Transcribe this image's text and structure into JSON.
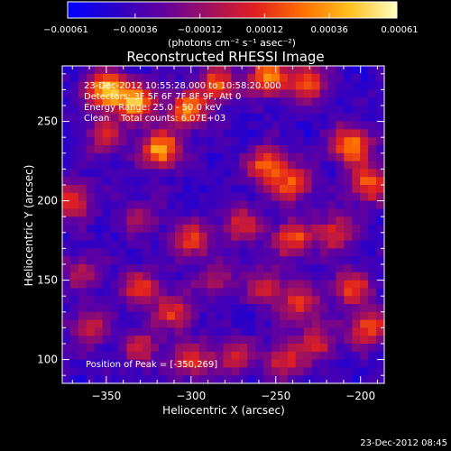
{
  "chart_data": {
    "type": "heatmap",
    "title": "Reconstructed RHESSI Image",
    "xlabel": "Heliocentric X (arcsec)",
    "ylabel": "Heliocentric Y (arcsec)",
    "xlim": [
      -376,
      -186
    ],
    "ylim": [
      85,
      285
    ],
    "xticks": [
      -350,
      -300,
      -250,
      -200
    ],
    "xtick_labels": [
      "−350",
      "−300",
      "−250",
      "−200"
    ],
    "yticks": [
      100,
      150,
      200,
      250
    ],
    "ytick_labels": [
      "100",
      "150",
      "200",
      "250"
    ],
    "colorbar": {
      "range": [
        -0.00061,
        0.00061
      ],
      "tick_values": [
        -0.00061,
        -0.00036,
        -0.00012,
        0.00012,
        0.00036,
        0.00061
      ],
      "tick_labels": [
        "−0.00061",
        "−0.00036",
        "−0.00012",
        "0.00012",
        "0.00036",
        "0.00061"
      ],
      "unit_label": "(photons cm⁻² s⁻¹ asec⁻²)",
      "colors": [
        "#0000ff",
        "#2a00c8",
        "#6000a0",
        "#a01060",
        "#e02020",
        "#ff7000",
        "#ffc020",
        "#ffffc0"
      ]
    },
    "annotations": {
      "line1": "23-Dec-2012 10:55:28.000 to 10:58:20.000",
      "line2": "Detectors: 3F 5F 6F 7F 8F 9F, Att 0",
      "line3": "Energy Range: 25.0 - 50.0 keV",
      "line4": "Clean    Total counts: 6.07E+03",
      "peak": "Position of Peak = [-350,269]"
    },
    "peak_position": [
      -350,
      269
    ],
    "hotspots": [
      {
        "x": -350,
        "y": 269,
        "amp": 1.0
      },
      {
        "x": -332,
        "y": 262,
        "amp": 0.85
      },
      {
        "x": -318,
        "y": 232,
        "amp": 0.9
      },
      {
        "x": -302,
        "y": 257,
        "amp": 0.75
      },
      {
        "x": -285,
        "y": 273,
        "amp": 0.65
      },
      {
        "x": -255,
        "y": 278,
        "amp": 0.8
      },
      {
        "x": -232,
        "y": 275,
        "amp": 0.7
      },
      {
        "x": -255,
        "y": 222,
        "amp": 0.75
      },
      {
        "x": -240,
        "y": 210,
        "amp": 0.6
      },
      {
        "x": -205,
        "y": 235,
        "amp": 0.85
      },
      {
        "x": -195,
        "y": 210,
        "amp": 0.7
      },
      {
        "x": -215,
        "y": 180,
        "amp": 0.55
      },
      {
        "x": -240,
        "y": 176,
        "amp": 0.65
      },
      {
        "x": -270,
        "y": 185,
        "amp": 0.5
      },
      {
        "x": -300,
        "y": 175,
        "amp": 0.6
      },
      {
        "x": -330,
        "y": 190,
        "amp": 0.35
      },
      {
        "x": -370,
        "y": 200,
        "amp": 0.6
      },
      {
        "x": -350,
        "y": 240,
        "amp": 0.45
      },
      {
        "x": -330,
        "y": 145,
        "amp": 0.55
      },
      {
        "x": -310,
        "y": 130,
        "amp": 0.55
      },
      {
        "x": -285,
        "y": 150,
        "amp": 0.4
      },
      {
        "x": -255,
        "y": 145,
        "amp": 0.5
      },
      {
        "x": -235,
        "y": 135,
        "amp": 0.55
      },
      {
        "x": -205,
        "y": 145,
        "amp": 0.6
      },
      {
        "x": -195,
        "y": 120,
        "amp": 0.65
      },
      {
        "x": -225,
        "y": 110,
        "amp": 0.5
      },
      {
        "x": -245,
        "y": 100,
        "amp": 0.55
      },
      {
        "x": -275,
        "y": 102,
        "amp": 0.5
      },
      {
        "x": -300,
        "y": 100,
        "amp": 0.55
      },
      {
        "x": -330,
        "y": 108,
        "amp": 0.45
      },
      {
        "x": -360,
        "y": 120,
        "amp": 0.5
      },
      {
        "x": -365,
        "y": 155,
        "amp": 0.4
      }
    ]
  },
  "footer": {
    "timestamp": "23-Dec-2012 08:45"
  }
}
